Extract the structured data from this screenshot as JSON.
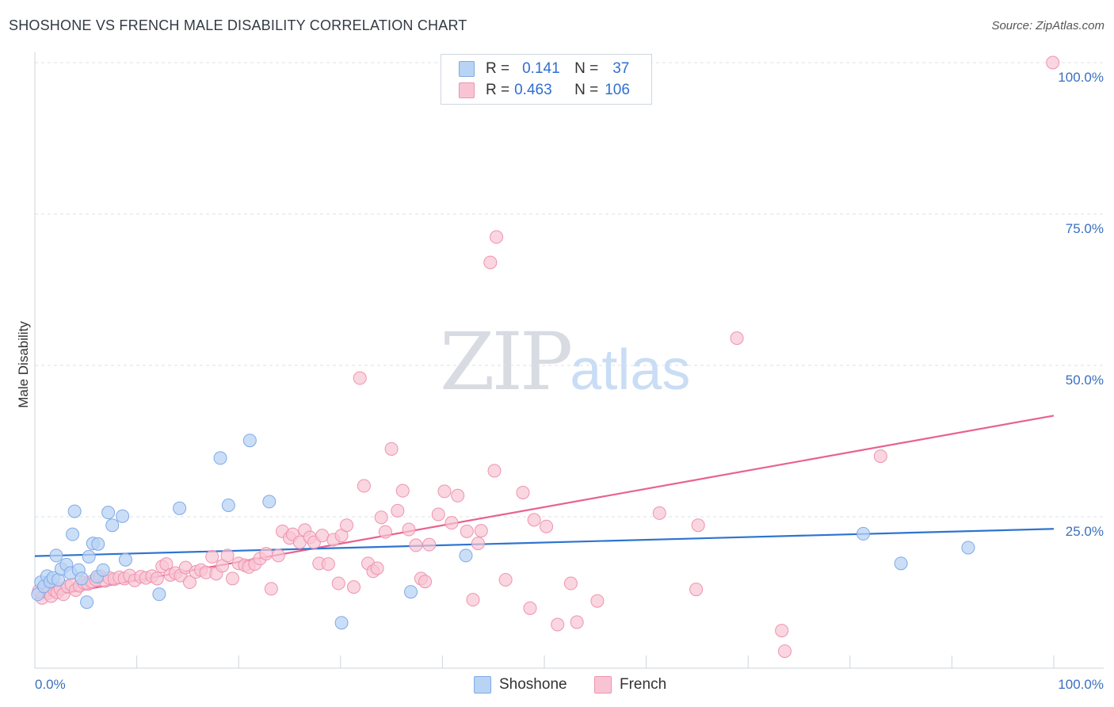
{
  "header": {
    "title": "SHOSHONE VS FRENCH MALE DISABILITY CORRELATION CHART",
    "source": "Source: ZipAtlas.com"
  },
  "watermark": {
    "zip": "ZIP",
    "atlas": "atlas"
  },
  "legend": {
    "shoshone": {
      "r_label": "R =",
      "r_value": "0.141",
      "n_label": "N =",
      "n_value": "37"
    },
    "french": {
      "r_label": "R =",
      "r_value": "0.463",
      "n_label": "N =",
      "n_value": "106"
    }
  },
  "bottom_legend": {
    "shoshone": "Shoshone",
    "french": "French"
  },
  "colors": {
    "shoshone_fill": "#b9d3f4",
    "shoshone_stroke": "#7eaae6",
    "shoshone_line": "#2e74d0",
    "french_fill": "#f8c4d3",
    "french_stroke": "#ee93b0",
    "french_line": "#e8628f",
    "tick_text": "#3a6fc0"
  },
  "chart_data": {
    "type": "scatter",
    "title": "SHOSHONE VS FRENCH MALE DISABILITY CORRELATION CHART",
    "xlabel": "",
    "ylabel": "Male Disability",
    "xlim": [
      0,
      100
    ],
    "ylim": [
      0,
      100
    ],
    "x_tick_labels": [
      "0.0%",
      "100.0%"
    ],
    "y_ticks": [
      25,
      50,
      75,
      100
    ],
    "y_tick_labels": [
      "25.0%",
      "50.0%",
      "75.0%",
      "100.0%"
    ],
    "grid": "horizontal dashed",
    "legend_position": "top-center",
    "series": [
      {
        "name": "Shoshone",
        "r": 0.141,
        "n": 37,
        "trend": [
          [
            0,
            18.5
          ],
          [
            100,
            23.0
          ]
        ],
        "points": [
          [
            0.3,
            12.2
          ],
          [
            0.6,
            14.2
          ],
          [
            0.9,
            13.5
          ],
          [
            1.2,
            15.2
          ],
          [
            1.5,
            14.3
          ],
          [
            1.8,
            14.9
          ],
          [
            2.1,
            18.6
          ],
          [
            2.3,
            14.6
          ],
          [
            2.6,
            16.4
          ],
          [
            3.1,
            17.1
          ],
          [
            3.5,
            15.7
          ],
          [
            3.7,
            22.1
          ],
          [
            3.9,
            25.9
          ],
          [
            4.3,
            16.2
          ],
          [
            4.6,
            14.8
          ],
          [
            5.1,
            10.9
          ],
          [
            5.3,
            18.4
          ],
          [
            5.7,
            20.6
          ],
          [
            6.2,
            20.5
          ],
          [
            6.1,
            15.1
          ],
          [
            6.7,
            16.2
          ],
          [
            7.2,
            25.7
          ],
          [
            7.6,
            23.6
          ],
          [
            8.6,
            25.1
          ],
          [
            8.9,
            17.9
          ],
          [
            12.2,
            12.2
          ],
          [
            14.2,
            26.4
          ],
          [
            18.2,
            34.7
          ],
          [
            19.0,
            26.9
          ],
          [
            21.1,
            37.6
          ],
          [
            23.0,
            27.5
          ],
          [
            30.1,
            7.5
          ],
          [
            36.9,
            12.6
          ],
          [
            42.3,
            18.6
          ],
          [
            85.0,
            17.3
          ],
          [
            91.6,
            19.9
          ],
          [
            81.3,
            22.2
          ]
        ]
      },
      {
        "name": "French",
        "r": 0.463,
        "n": 106,
        "trend": [
          [
            0,
            11.5
          ],
          [
            100,
            41.7
          ]
        ],
        "points": [
          [
            0.4,
            12.8
          ],
          [
            0.7,
            11.6
          ],
          [
            1.0,
            13.2
          ],
          [
            1.3,
            12.4
          ],
          [
            1.6,
            11.9
          ],
          [
            1.9,
            12.9
          ],
          [
            2.2,
            12.5
          ],
          [
            2.5,
            13.1
          ],
          [
            2.8,
            12.2
          ],
          [
            3.2,
            13.5
          ],
          [
            3.6,
            13.8
          ],
          [
            4.0,
            12.9
          ],
          [
            4.4,
            13.6
          ],
          [
            4.8,
            14.1
          ],
          [
            5.2,
            13.9
          ],
          [
            5.6,
            14.3
          ],
          [
            6.0,
            14.6
          ],
          [
            6.4,
            15.2
          ],
          [
            6.9,
            14.4
          ],
          [
            7.3,
            14.9
          ],
          [
            7.8,
            14.7
          ],
          [
            8.3,
            15.0
          ],
          [
            8.8,
            14.8
          ],
          [
            9.3,
            15.3
          ],
          [
            9.8,
            14.5
          ],
          [
            10.4,
            15.1
          ],
          [
            10.9,
            14.9
          ],
          [
            11.5,
            15.2
          ],
          [
            12.0,
            14.8
          ],
          [
            12.5,
            16.8
          ],
          [
            12.9,
            17.2
          ],
          [
            13.3,
            15.4
          ],
          [
            13.8,
            15.7
          ],
          [
            14.3,
            15.3
          ],
          [
            14.8,
            16.6
          ],
          [
            15.2,
            14.2
          ],
          [
            15.8,
            15.9
          ],
          [
            16.3,
            16.2
          ],
          [
            16.8,
            15.8
          ],
          [
            17.4,
            18.4
          ],
          [
            17.8,
            15.6
          ],
          [
            18.4,
            16.9
          ],
          [
            18.9,
            18.6
          ],
          [
            19.4,
            14.8
          ],
          [
            20.0,
            17.3
          ],
          [
            20.6,
            17.0
          ],
          [
            21.0,
            16.7
          ],
          [
            21.6,
            17.2
          ],
          [
            22.1,
            18.1
          ],
          [
            22.7,
            18.9
          ],
          [
            23.2,
            13.1
          ],
          [
            23.9,
            18.6
          ],
          [
            24.3,
            22.6
          ],
          [
            25.0,
            21.5
          ],
          [
            25.3,
            22.1
          ],
          [
            26.0,
            20.8
          ],
          [
            26.5,
            22.8
          ],
          [
            27.0,
            21.6
          ],
          [
            27.4,
            20.8
          ],
          [
            27.9,
            17.3
          ],
          [
            28.2,
            21.9
          ],
          [
            28.8,
            17.2
          ],
          [
            29.3,
            21.2
          ],
          [
            29.8,
            14.0
          ],
          [
            30.1,
            21.9
          ],
          [
            30.6,
            23.6
          ],
          [
            31.3,
            13.4
          ],
          [
            31.9,
            47.9
          ],
          [
            32.3,
            30.1
          ],
          [
            32.7,
            17.3
          ],
          [
            33.2,
            16.0
          ],
          [
            33.6,
            16.5
          ],
          [
            34.0,
            24.9
          ],
          [
            34.4,
            22.5
          ],
          [
            35.0,
            36.2
          ],
          [
            35.6,
            26.0
          ],
          [
            36.1,
            29.3
          ],
          [
            36.7,
            22.9
          ],
          [
            37.4,
            20.3
          ],
          [
            37.9,
            14.8
          ],
          [
            38.3,
            14.3
          ],
          [
            38.7,
            20.4
          ],
          [
            39.6,
            25.4
          ],
          [
            40.2,
            29.2
          ],
          [
            40.9,
            24.0
          ],
          [
            41.5,
            28.5
          ],
          [
            42.4,
            22.6
          ],
          [
            43.0,
            11.3
          ],
          [
            43.5,
            20.6
          ],
          [
            43.8,
            22.7
          ],
          [
            44.7,
            67.0
          ],
          [
            45.3,
            71.2
          ],
          [
            45.1,
            32.6
          ],
          [
            46.2,
            14.6
          ],
          [
            47.9,
            29.0
          ],
          [
            48.6,
            9.9
          ],
          [
            49.0,
            24.5
          ],
          [
            50.2,
            23.4
          ],
          [
            51.3,
            7.2
          ],
          [
            52.6,
            14.0
          ],
          [
            53.2,
            7.6
          ],
          [
            55.2,
            11.1
          ],
          [
            61.3,
            25.6
          ],
          [
            64.9,
            13.0
          ],
          [
            65.1,
            23.6
          ],
          [
            68.9,
            54.5
          ],
          [
            73.3,
            6.2
          ],
          [
            73.6,
            2.8
          ],
          [
            83.0,
            35.0
          ],
          [
            99.9,
            100.0
          ]
        ]
      }
    ]
  }
}
